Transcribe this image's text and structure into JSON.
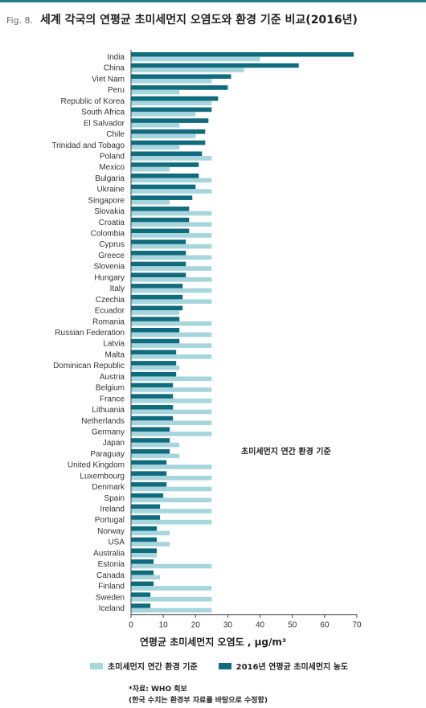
{
  "header": {
    "fig": "Fig. 8.",
    "title": "세계 각국의 연평균 초미세먼지 오염도와 환경 기준 비교(2016년)"
  },
  "colors": {
    "standard": "#a6d5dd",
    "actual": "#0f6b7d",
    "rule": "#1f7a8c"
  },
  "annotation": "초미세먼지 연간 환경 기준",
  "source": {
    "line1": "*자료: WHO 회보",
    "line2": "(한국 수치는 환경부 자료를 바탕으로 수정함)"
  },
  "chart_data": {
    "type": "bar",
    "orientation": "horizontal",
    "title": "세계 각국의 연평균 초미세먼지 오염도와 환경 기준 비교(2016년)",
    "xlabel": "연평균 초미세먼지 오염도 , µg/m³",
    "xlim": [
      0,
      70
    ],
    "xticks": [
      "0",
      "10",
      "20",
      "30",
      "40",
      "50",
      "60",
      "70"
    ],
    "categories": [
      "India",
      "China",
      "Viet Nam",
      "Peru",
      "Republic of Korea",
      "South Africa",
      "El Salvador",
      "Chile",
      "Trinidad and Tobago",
      "Poland",
      "Mexico",
      "Bulgaria",
      "Ukraine",
      "Singapore",
      "Slovakia",
      "Croatia",
      "Colombia",
      "Cyprus",
      "Greece",
      "Slovenia",
      "Hungary",
      "Italy",
      "Czechia",
      "Ecuador",
      "Romania",
      "Russian Federation",
      "Latvia",
      "Malta",
      "Dominican Republic",
      "Austria",
      "Belgium",
      "France",
      "Lithuania",
      "Netherlands",
      "Germany",
      "Japan",
      "Paraguay",
      "United Kingdom",
      "Luxembourg",
      "Denmark",
      "Spain",
      "Ireland",
      "Portugal",
      "Norway",
      "USA",
      "Australia",
      "Estonia",
      "Canada",
      "Finland",
      "Sweden",
      "Iceland"
    ],
    "series": [
      {
        "name": "초미세먼지 연간 환경 기준",
        "values": [
          40,
          35,
          25,
          15,
          25,
          20,
          15,
          20,
          15,
          25,
          12,
          25,
          25,
          12,
          25,
          25,
          25,
          25,
          25,
          25,
          25,
          25,
          25,
          15,
          25,
          25,
          25,
          25,
          15,
          25,
          25,
          25,
          25,
          25,
          25,
          15,
          15,
          25,
          25,
          25,
          25,
          25,
          25,
          12,
          12,
          8,
          25,
          9,
          25,
          25,
          25
        ]
      },
      {
        "name": "2016년 연평균 초미세먼지 농도",
        "values": [
          69,
          52,
          31,
          30,
          27,
          25,
          24,
          23,
          23,
          22,
          21,
          21,
          20,
          19,
          18,
          18,
          18,
          17,
          17,
          17,
          17,
          16,
          16,
          16,
          15,
          15,
          15,
          14,
          14,
          14,
          13,
          13,
          13,
          13,
          12,
          12,
          12,
          11,
          11,
          11,
          10,
          9,
          9,
          8,
          8,
          8,
          7,
          7,
          7,
          6,
          6
        ]
      }
    ],
    "legend_placement": "bottom",
    "grid": false
  }
}
